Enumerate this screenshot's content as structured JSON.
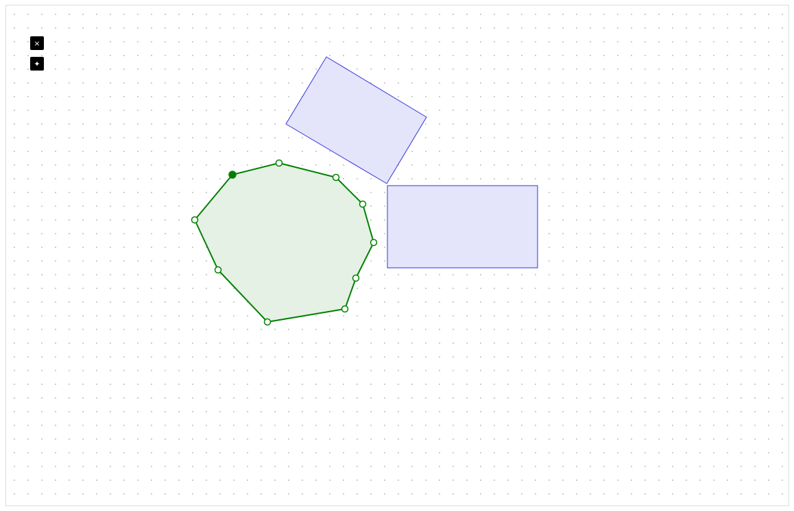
{
  "toolbar": {
    "close_icon_glyph": "×",
    "sparkle_icon_glyph": "✦"
  },
  "canvas": {
    "background": "#ffffff",
    "grid": "dotted"
  },
  "colors": {
    "polygon_stroke": "#008000",
    "polygon_fill": "#e4f1e4",
    "rect_stroke": "#3333dd",
    "rect_fill": "#e4e4fb",
    "handle_fill_selected": "#008000",
    "handle_fill": "#ffffff"
  },
  "shapes": {
    "polygon_vertex_count": 10,
    "selected_vertex": 1,
    "rectangle_count": 2
  }
}
